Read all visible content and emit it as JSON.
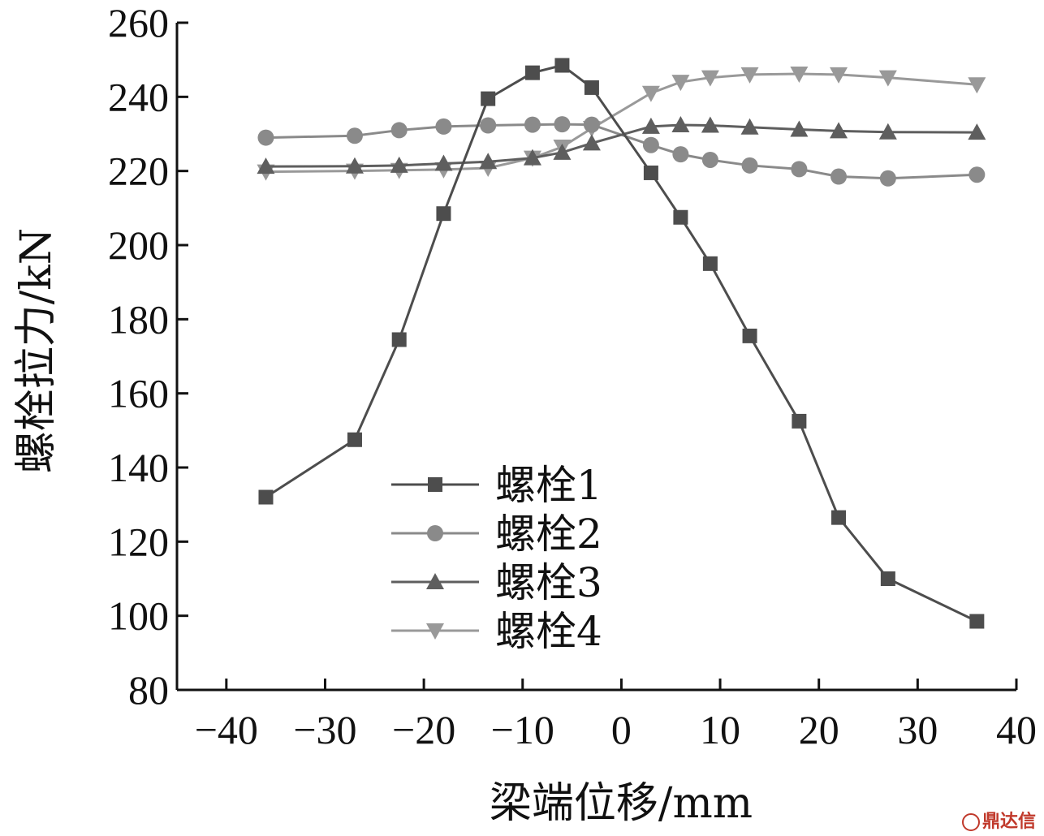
{
  "chart_data": {
    "type": "line",
    "xlabel": "梁端位移/mm",
    "ylabel": "螺栓拉力/kN",
    "xlim": [
      -45,
      40
    ],
    "ylim": [
      80,
      260
    ],
    "xticks": [
      -40,
      -30,
      -20,
      -10,
      0,
      10,
      20,
      30,
      40
    ],
    "yticks": [
      80,
      100,
      120,
      140,
      160,
      180,
      200,
      220,
      240,
      260
    ],
    "xtick_labels": [
      "−40",
      "−30",
      "−20",
      "−10",
      "0",
      "10",
      "20",
      "30",
      "40"
    ],
    "ytick_labels": [
      "80",
      "100",
      "120",
      "140",
      "160",
      "180",
      "200",
      "220",
      "240",
      "260"
    ],
    "legend_position": "lower-center",
    "series": [
      {
        "name": "螺栓1",
        "marker": "square",
        "color": "#4d4d4d",
        "x": [
          -36,
          -27,
          -22.5,
          -18,
          -13.5,
          -9,
          -6,
          -3,
          3,
          6,
          9,
          13,
          18,
          22,
          27,
          36
        ],
        "y": [
          132,
          147.5,
          174.5,
          208.5,
          239.5,
          246.5,
          248.5,
          242.5,
          219.5,
          207.5,
          195,
          175.5,
          152.5,
          126.5,
          110,
          98.5
        ]
      },
      {
        "name": "螺栓2",
        "marker": "circle",
        "color": "#8a8a8a",
        "x": [
          -36,
          -27,
          -22.5,
          -18,
          -13.5,
          -9,
          -6,
          -3,
          3,
          6,
          9,
          13,
          18,
          22,
          27,
          36
        ],
        "y": [
          229,
          229.5,
          231,
          232,
          232.3,
          232.5,
          232.6,
          232.5,
          227,
          224.5,
          223,
          221.5,
          220.5,
          218.5,
          218,
          219
        ]
      },
      {
        "name": "螺栓3",
        "marker": "triangle-up",
        "color": "#5e5e5e",
        "x": [
          -36,
          -27,
          -22.5,
          -18,
          -13.5,
          -9,
          -6,
          -3,
          3,
          6,
          9,
          13,
          18,
          22,
          27,
          36
        ],
        "y": [
          221.2,
          221.3,
          221.5,
          222,
          222.5,
          223.5,
          225,
          227.5,
          232,
          232.4,
          232.3,
          231.8,
          231.2,
          230.8,
          230.5,
          230.4
        ]
      },
      {
        "name": "螺栓4",
        "marker": "triangle-down",
        "color": "#999999",
        "x": [
          -36,
          -27,
          -22.5,
          -18,
          -13.5,
          -9,
          -6,
          -3,
          3,
          6,
          9,
          13,
          18,
          22,
          27,
          36
        ],
        "y": [
          219.8,
          220,
          220.2,
          220.4,
          220.8,
          223.5,
          226.5,
          231.5,
          241,
          244,
          245.2,
          246,
          246.2,
          246,
          245.2,
          243.3
        ]
      }
    ]
  },
  "watermark": {
    "text": "鼎达信"
  }
}
